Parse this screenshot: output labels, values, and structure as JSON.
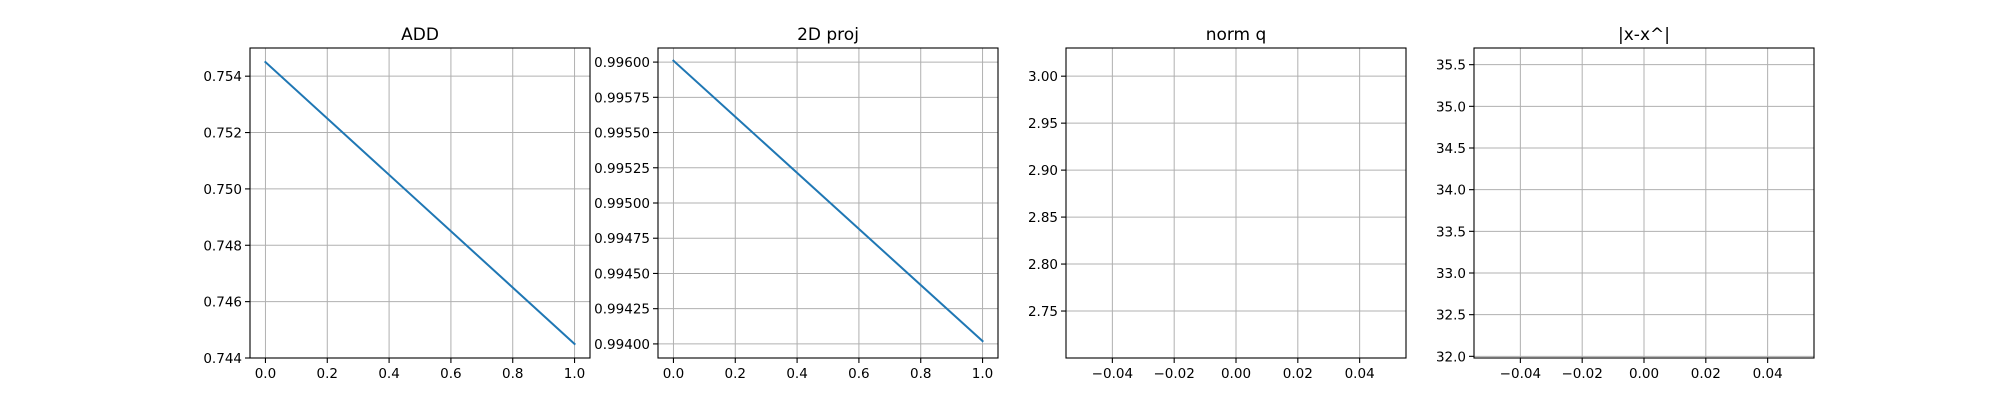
{
  "chart_data": [
    {
      "type": "line",
      "title": "ADD",
      "xlabel": "",
      "ylabel": "",
      "xlim": [
        -0.05,
        1.05
      ],
      "ylim": [
        0.744,
        0.755
      ],
      "xticks": [
        0.0,
        0.2,
        0.4,
        0.6,
        0.8,
        1.0
      ],
      "xtick_labels": [
        "0.0",
        "0.2",
        "0.4",
        "0.6",
        "0.8",
        "1.0"
      ],
      "yticks": [
        0.744,
        0.746,
        0.748,
        0.75,
        0.752,
        0.754
      ],
      "ytick_labels": [
        "0.744",
        "0.746",
        "0.748",
        "0.750",
        "0.752",
        "0.754"
      ],
      "grid": true,
      "color": "#1f77b4",
      "series": [
        {
          "x": [
            0.0,
            1.0
          ],
          "y": [
            0.7545,
            0.7445
          ]
        }
      ]
    },
    {
      "type": "line",
      "title": "2D proj",
      "xlabel": "",
      "ylabel": "",
      "xlim": [
        -0.05,
        1.05
      ],
      "ylim": [
        0.9939,
        0.9961
      ],
      "xticks": [
        0.0,
        0.2,
        0.4,
        0.6,
        0.8,
        1.0
      ],
      "xtick_labels": [
        "0.0",
        "0.2",
        "0.4",
        "0.6",
        "0.8",
        "1.0"
      ],
      "yticks": [
        0.994,
        0.99425,
        0.9945,
        0.99475,
        0.995,
        0.99525,
        0.9955,
        0.99575,
        0.996
      ],
      "ytick_labels": [
        "0.99400",
        "0.99425",
        "0.99450",
        "0.99475",
        "0.99500",
        "0.99525",
        "0.99550",
        "0.99575",
        "0.99600"
      ],
      "grid": true,
      "color": "#1f77b4",
      "series": [
        {
          "x": [
            0.0,
            1.0
          ],
          "y": [
            0.99601,
            0.99402
          ]
        }
      ]
    },
    {
      "type": "line",
      "title": "norm q",
      "xlabel": "",
      "ylabel": "",
      "xlim": [
        -0.055,
        0.055
      ],
      "ylim": [
        2.7,
        3.03
      ],
      "xticks": [
        -0.04,
        -0.02,
        0.0,
        0.02,
        0.04
      ],
      "xtick_labels": [
        "−0.04",
        "−0.02",
        "0.00",
        "0.02",
        "0.04"
      ],
      "yticks": [
        2.75,
        2.8,
        2.85,
        2.9,
        2.95,
        3.0
      ],
      "ytick_labels": [
        "2.75",
        "2.80",
        "2.85",
        "2.90",
        "2.95",
        "3.00"
      ],
      "grid": true,
      "color": "#1f77b4",
      "series": []
    },
    {
      "type": "line",
      "title": "|x-x^|",
      "xlabel": "",
      "ylabel": "",
      "xlim": [
        -0.055,
        0.055
      ],
      "ylim": [
        31.98,
        35.7
      ],
      "xticks": [
        -0.04,
        -0.02,
        0.0,
        0.02,
        0.04
      ],
      "xtick_labels": [
        "−0.04",
        "−0.02",
        "0.00",
        "0.02",
        "0.04"
      ],
      "yticks": [
        32.0,
        32.5,
        33.0,
        33.5,
        34.0,
        34.5,
        35.0,
        35.5
      ],
      "ytick_labels": [
        "32.0",
        "32.5",
        "33.0",
        "33.5",
        "34.0",
        "34.5",
        "35.0",
        "35.5"
      ],
      "grid": true,
      "color": "#1f77b4",
      "series": []
    }
  ]
}
